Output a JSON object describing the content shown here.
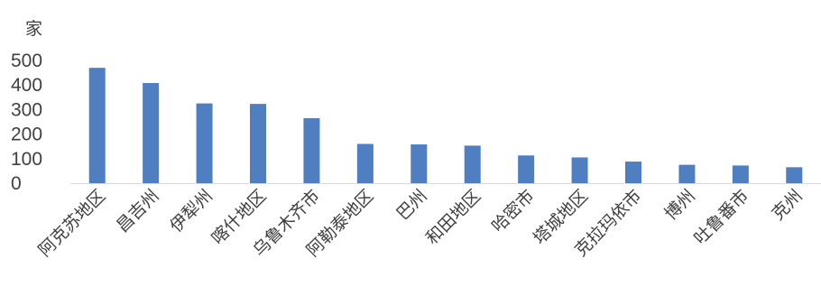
{
  "chart_data": {
    "type": "bar",
    "unit_label": "家",
    "categories": [
      "阿克苏地区",
      "昌吉州",
      "伊犁州",
      "喀什地区",
      "乌鲁木齐市",
      "阿勒泰地区",
      "巴州",
      "和田地区",
      "哈密市",
      "塔城地区",
      "克拉玛依市",
      "博州",
      "吐鲁番市",
      "克州"
    ],
    "values": [
      470,
      408,
      325,
      323,
      265,
      160,
      158,
      153,
      113,
      105,
      88,
      75,
      72,
      65
    ],
    "yticks": [
      0,
      100,
      200,
      300,
      400,
      500
    ],
    "ylim": [
      0,
      500
    ],
    "color": "#4f7fc0",
    "grid": false,
    "legend": "none"
  }
}
